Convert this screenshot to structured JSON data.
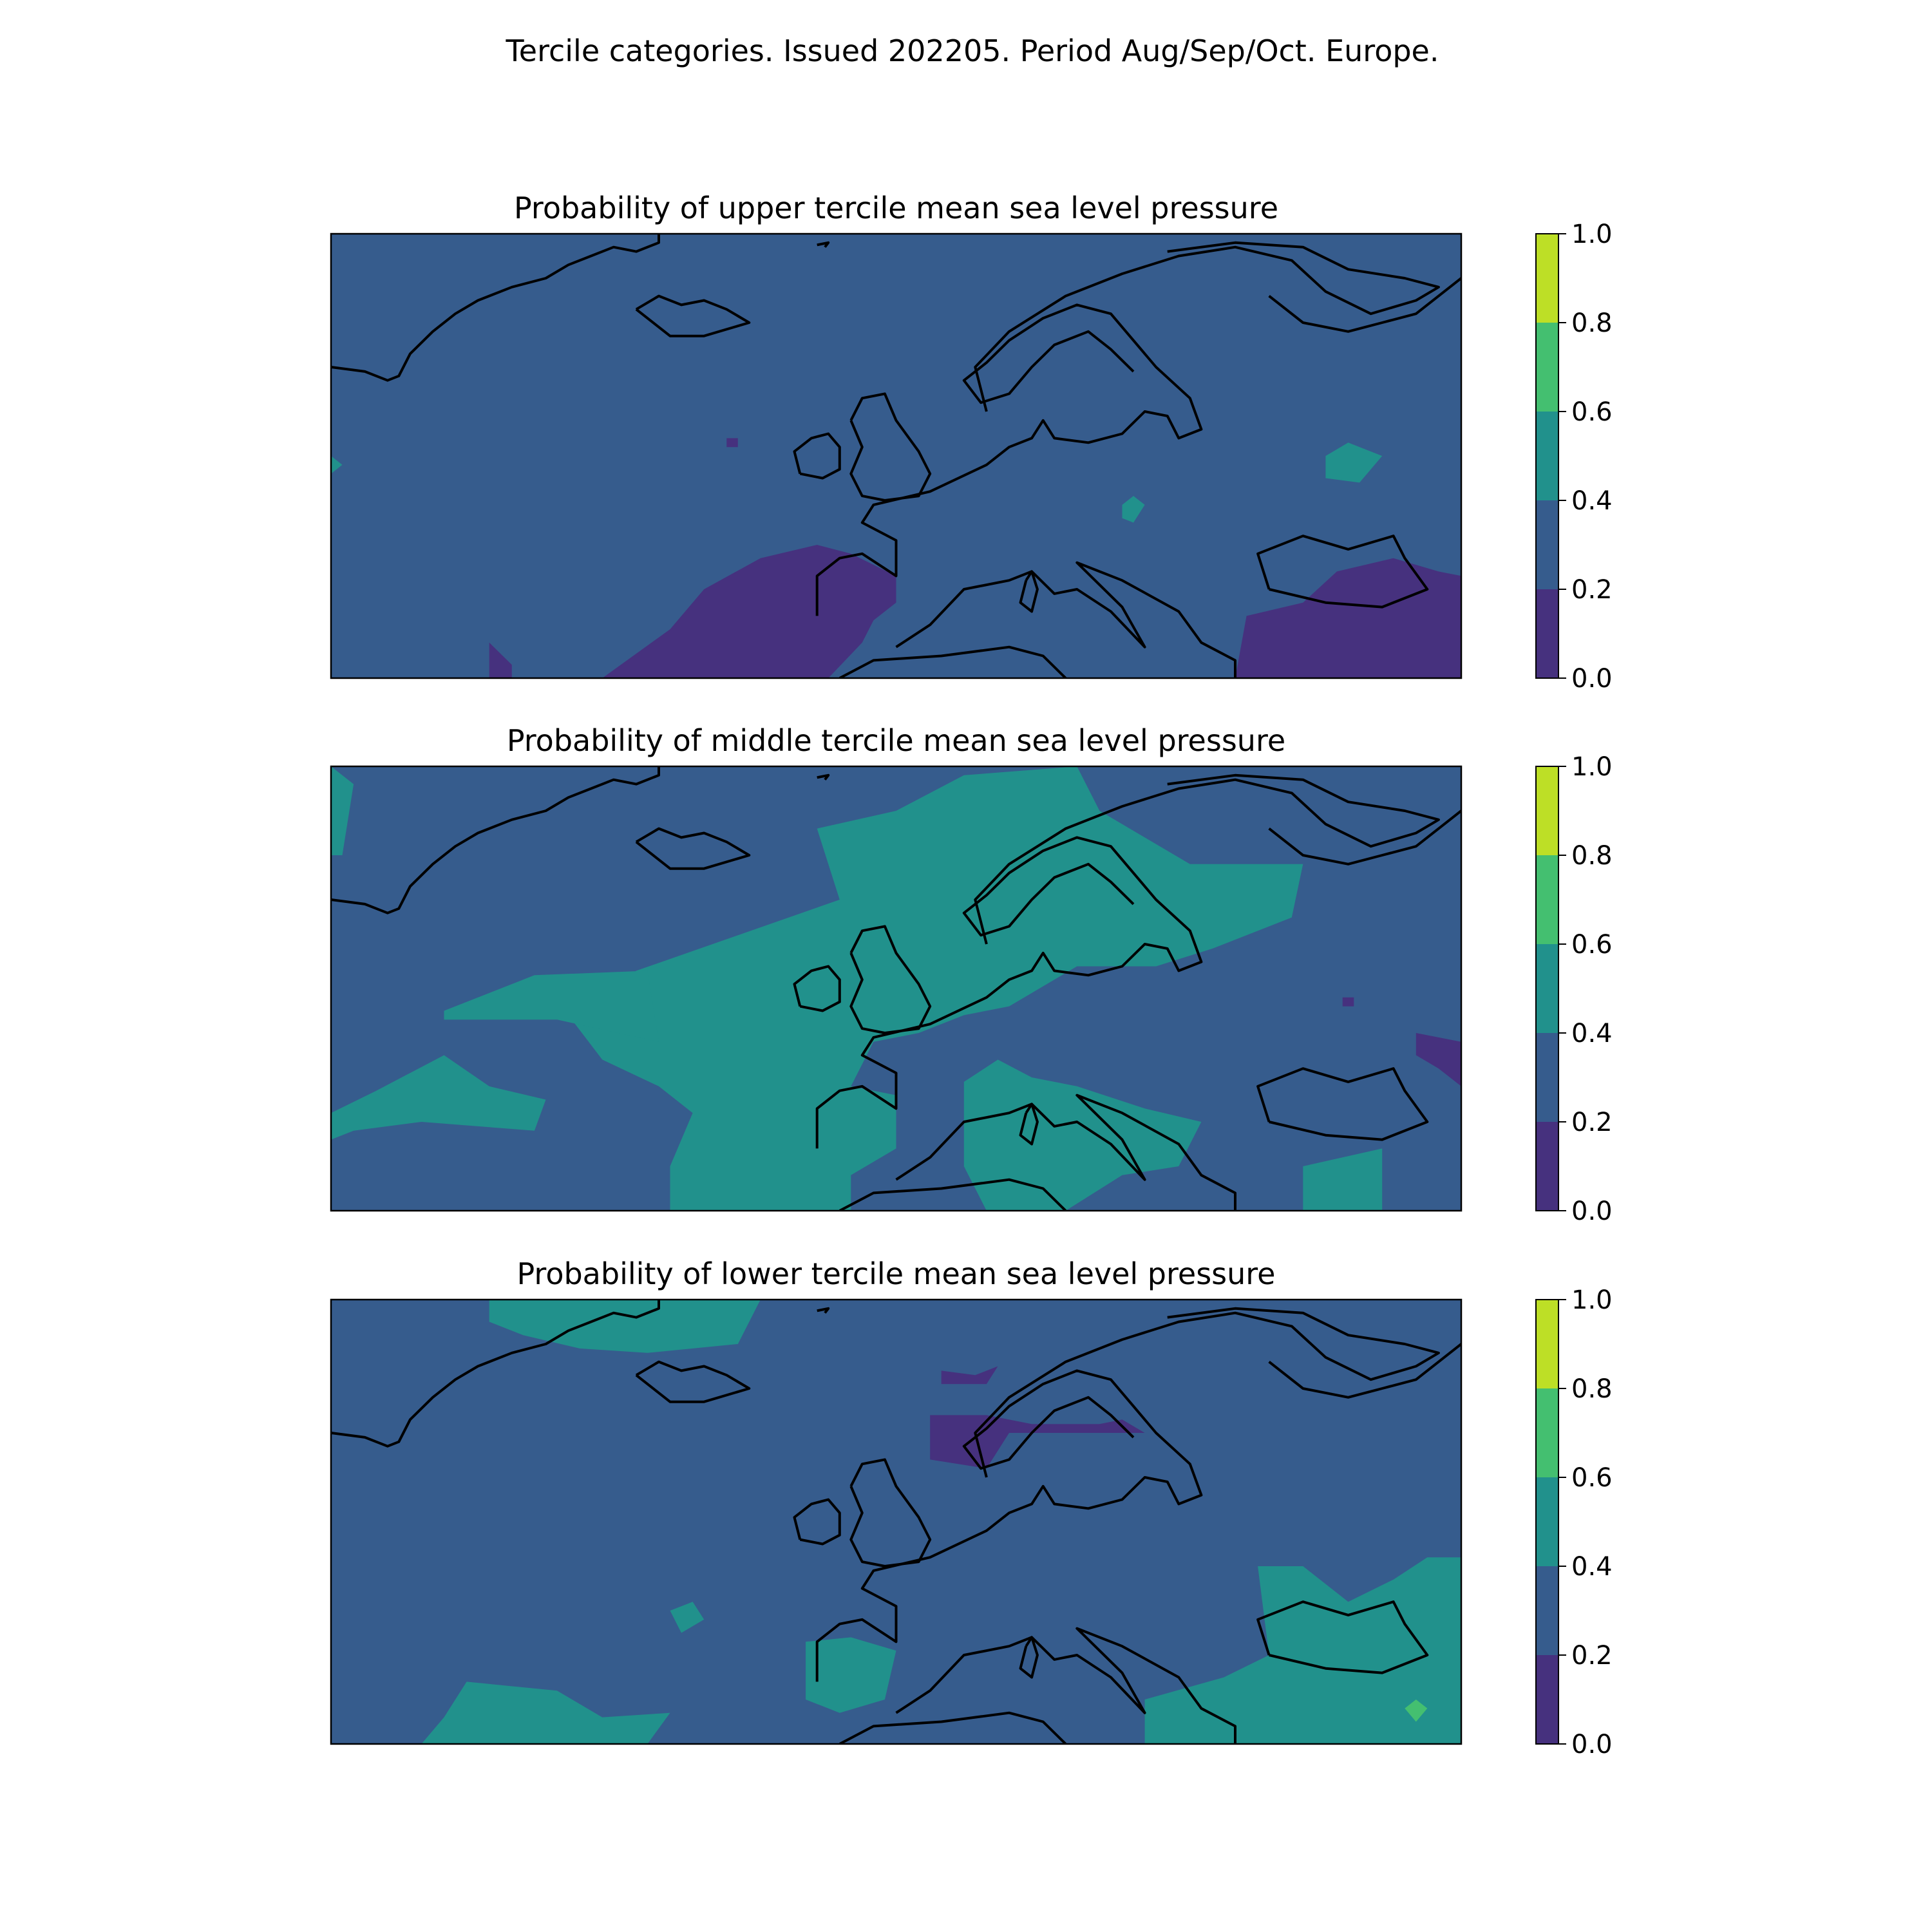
{
  "figure": {
    "suptitle": "Tercile categories. Issued 202205. Period Aug/Sep/Oct. Europe."
  },
  "colorbar": {
    "levels": [
      0.0,
      0.2,
      0.4,
      0.6,
      0.8,
      1.0
    ],
    "tick_labels": [
      "0.0",
      "0.2",
      "0.4",
      "0.6",
      "0.8",
      "1.0"
    ],
    "colors": [
      "#46317e",
      "#365c8d",
      "#21918c",
      "#44bf70",
      "#bddf26"
    ]
  },
  "coast_color": "#000000",
  "panels": [
    {
      "title": "Probability of upper tercile mean sea level pressure",
      "background_category": 1,
      "regions": [
        {
          "category": 0,
          "name": "iberia-atlantic-low",
          "poly": [
            [
              0.24,
              1.0
            ],
            [
              0.3,
              0.89
            ],
            [
              0.33,
              0.8
            ],
            [
              0.38,
              0.73
            ],
            [
              0.43,
              0.7
            ],
            [
              0.46,
              0.72
            ],
            [
              0.5,
              0.77
            ],
            [
              0.5,
              0.83
            ],
            [
              0.48,
              0.87
            ],
            [
              0.47,
              0.92
            ],
            [
              0.44,
              1.0
            ]
          ]
        },
        {
          "category": 0,
          "name": "mid-atlantic-low",
          "poly": [
            [
              0.14,
              1.0
            ],
            [
              0.14,
              0.92
            ],
            [
              0.16,
              0.97
            ],
            [
              0.16,
              1.0
            ]
          ]
        },
        {
          "category": 0,
          "name": "small-low-square",
          "poly": [
            [
              0.35,
              0.46
            ],
            [
              0.36,
              0.46
            ],
            [
              0.36,
              0.48
            ],
            [
              0.35,
              0.48
            ]
          ]
        },
        {
          "category": 0,
          "name": "turkey-caucasus-low",
          "poly": [
            [
              0.8,
              1.0
            ],
            [
              0.81,
              0.86
            ],
            [
              0.86,
              0.83
            ],
            [
              0.89,
              0.76
            ],
            [
              0.94,
              0.73
            ],
            [
              0.98,
              0.76
            ],
            [
              1.0,
              0.77
            ],
            [
              1.0,
              1.0
            ]
          ]
        },
        {
          "category": 2,
          "name": "russia-small-high",
          "poly": [
            [
              0.88,
              0.5
            ],
            [
              0.9,
              0.47
            ],
            [
              0.93,
              0.5
            ],
            [
              0.91,
              0.56
            ],
            [
              0.88,
              0.55
            ]
          ]
        },
        {
          "category": 2,
          "name": "baltic-small-high",
          "poly": [
            [
              0.7,
              0.61
            ],
            [
              0.71,
              0.59
            ],
            [
              0.72,
              0.61
            ],
            [
              0.71,
              0.65
            ],
            [
              0.7,
              0.64
            ]
          ]
        },
        {
          "category": 2,
          "name": "west-edge-high",
          "poly": [
            [
              0.0,
              0.5
            ],
            [
              0.01,
              0.52
            ],
            [
              0.0,
              0.54
            ]
          ]
        }
      ]
    },
    {
      "title": "Probability of middle tercile mean sea level pressure",
      "background_category": 1,
      "regions": [
        {
          "category": 2,
          "name": "north-sea-band",
          "poly": [
            [
              0.3,
              1.0
            ],
            [
              0.3,
              0.9
            ],
            [
              0.32,
              0.78
            ],
            [
              0.29,
              0.72
            ],
            [
              0.24,
              0.66
            ],
            [
              0.21,
              0.56
            ],
            [
              0.27,
              0.46
            ],
            [
              0.36,
              0.38
            ],
            [
              0.45,
              0.3
            ],
            [
              0.43,
              0.14
            ],
            [
              0.5,
              0.1
            ],
            [
              0.56,
              0.02
            ],
            [
              0.66,
              0.0
            ],
            [
              0.68,
              0.1
            ],
            [
              0.76,
              0.22
            ],
            [
              0.86,
              0.22
            ],
            [
              0.85,
              0.34
            ],
            [
              0.78,
              0.41
            ],
            [
              0.73,
              0.45
            ],
            [
              0.66,
              0.45
            ],
            [
              0.6,
              0.54
            ],
            [
              0.56,
              0.56
            ],
            [
              0.52,
              0.6
            ],
            [
              0.48,
              0.62
            ],
            [
              0.46,
              0.72
            ],
            [
              0.5,
              0.74
            ],
            [
              0.5,
              0.86
            ],
            [
              0.46,
              0.92
            ],
            [
              0.46,
              1.0
            ]
          ]
        },
        {
          "category": 2,
          "name": "west-atlantic-band",
          "poly": [
            [
              0.1,
              0.55
            ],
            [
              0.18,
              0.47
            ],
            [
              0.28,
              0.46
            ],
            [
              0.29,
              0.62
            ],
            [
              0.2,
              0.57
            ],
            [
              0.1,
              0.57
            ]
          ]
        },
        {
          "category": 2,
          "name": "sw-atlantic-band",
          "poly": [
            [
              0.0,
              0.78
            ],
            [
              0.04,
              0.73
            ],
            [
              0.1,
              0.65
            ],
            [
              0.14,
              0.72
            ],
            [
              0.19,
              0.75
            ],
            [
              0.18,
              0.82
            ],
            [
              0.08,
              0.8
            ],
            [
              0.02,
              0.82
            ],
            [
              0.0,
              0.84
            ]
          ]
        },
        {
          "category": 2,
          "name": "italy-balkans",
          "poly": [
            [
              0.56,
              0.71
            ],
            [
              0.59,
              0.66
            ],
            [
              0.62,
              0.7
            ],
            [
              0.66,
              0.72
            ],
            [
              0.72,
              0.77
            ],
            [
              0.77,
              0.8
            ],
            [
              0.75,
              0.9
            ],
            [
              0.7,
              0.92
            ],
            [
              0.65,
              1.0
            ],
            [
              0.58,
              1.0
            ],
            [
              0.56,
              0.9
            ]
          ]
        },
        {
          "category": 2,
          "name": "greenland-edge",
          "poly": [
            [
              0.0,
              0.0
            ],
            [
              0.02,
              0.04
            ],
            [
              0.01,
              0.2
            ],
            [
              0.0,
              0.2
            ]
          ]
        },
        {
          "category": 2,
          "name": "turkey-patch",
          "poly": [
            [
              0.86,
              0.9
            ],
            [
              0.93,
              0.86
            ],
            [
              0.93,
              1.0
            ],
            [
              0.86,
              1.0
            ]
          ]
        },
        {
          "category": 0,
          "name": "caspian-low",
          "poly": [
            [
              0.96,
              0.6
            ],
            [
              1.0,
              0.62
            ],
            [
              1.0,
              0.72
            ],
            [
              0.98,
              0.68
            ],
            [
              0.96,
              0.65
            ]
          ]
        },
        {
          "category": 0,
          "name": "small-low-square-mid",
          "poly": [
            [
              0.895,
              0.52
            ],
            [
              0.905,
              0.52
            ],
            [
              0.905,
              0.54
            ],
            [
              0.895,
              0.54
            ]
          ]
        }
      ]
    },
    {
      "title": "Probability of lower tercile mean sea level pressure",
      "background_category": 1,
      "regions": [
        {
          "category": 2,
          "name": "iceland-greenland-high",
          "poly": [
            [
              0.14,
              0.0
            ],
            [
              0.38,
              0.0
            ],
            [
              0.36,
              0.1
            ],
            [
              0.28,
              0.12
            ],
            [
              0.22,
              0.11
            ],
            [
              0.17,
              0.08
            ],
            [
              0.14,
              0.05
            ]
          ]
        },
        {
          "category": 2,
          "name": "sw-atlantic-high",
          "poly": [
            [
              0.08,
              1.0
            ],
            [
              0.1,
              0.94
            ],
            [
              0.12,
              0.86
            ],
            [
              0.2,
              0.88
            ],
            [
              0.24,
              0.94
            ],
            [
              0.3,
              0.93
            ],
            [
              0.28,
              1.0
            ]
          ]
        },
        {
          "category": 2,
          "name": "iberia-high",
          "poly": [
            [
              0.42,
              0.77
            ],
            [
              0.46,
              0.76
            ],
            [
              0.5,
              0.79
            ],
            [
              0.49,
              0.9
            ],
            [
              0.45,
              0.93
            ],
            [
              0.42,
              0.9
            ]
          ]
        },
        {
          "category": 2,
          "name": "east-med-black-sea-high",
          "poly": [
            [
              0.72,
              1.0
            ],
            [
              0.72,
              0.9
            ],
            [
              0.79,
              0.85
            ],
            [
              0.83,
              0.8
            ],
            [
              0.82,
              0.6
            ],
            [
              0.86,
              0.6
            ],
            [
              0.9,
              0.68
            ],
            [
              0.94,
              0.63
            ],
            [
              0.97,
              0.58
            ],
            [
              1.0,
              0.58
            ],
            [
              1.0,
              1.0
            ]
          ]
        },
        {
          "category": 2,
          "name": "atlantic-small-high",
          "poly": [
            [
              0.3,
              0.7
            ],
            [
              0.32,
              0.68
            ],
            [
              0.33,
              0.72
            ],
            [
              0.31,
              0.75
            ]
          ]
        },
        {
          "category": 3,
          "name": "caspian-higher",
          "poly": [
            [
              0.95,
              0.92
            ],
            [
              0.96,
              0.9
            ],
            [
              0.97,
              0.92
            ],
            [
              0.96,
              0.95
            ]
          ]
        },
        {
          "category": 0,
          "name": "norway-low",
          "poly": [
            [
              0.53,
              0.26
            ],
            [
              0.58,
              0.26
            ],
            [
              0.62,
              0.28
            ],
            [
              0.68,
              0.28
            ],
            [
              0.7,
              0.27
            ],
            [
              0.72,
              0.3
            ],
            [
              0.6,
              0.3
            ],
            [
              0.58,
              0.38
            ],
            [
              0.53,
              0.36
            ]
          ]
        },
        {
          "category": 0,
          "name": "north-low-small",
          "poly": [
            [
              0.54,
              0.16
            ],
            [
              0.57,
              0.17
            ],
            [
              0.59,
              0.15
            ],
            [
              0.58,
              0.19
            ],
            [
              0.54,
              0.19
            ]
          ]
        }
      ]
    }
  ]
}
